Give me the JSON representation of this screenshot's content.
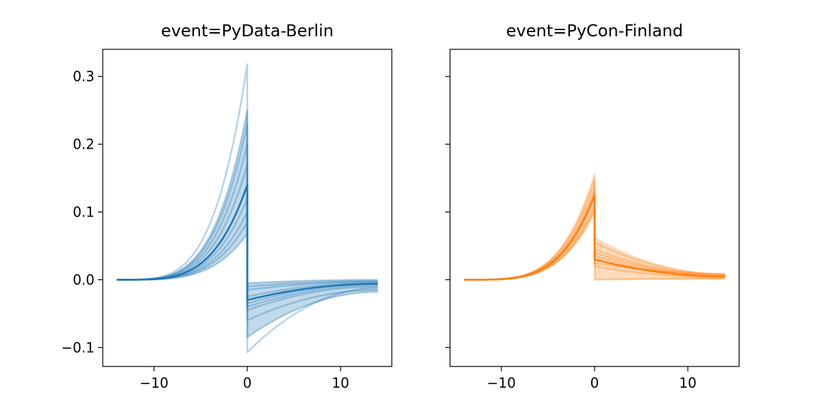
{
  "chart_data": [
    {
      "type": "line",
      "title": "event=PyData-Berlin",
      "color": "#1f77b4",
      "xlim": [
        -15.5,
        15.5
      ],
      "ylim": [
        -0.128,
        0.34
      ],
      "xticks": [
        {
          "value": -10,
          "label": "−10"
        },
        {
          "value": 0,
          "label": "0"
        },
        {
          "value": 10,
          "label": "10"
        }
      ],
      "yticks": [
        {
          "value": -0.1,
          "label": "−0.1"
        },
        {
          "value": 0.0,
          "label": "0.0"
        },
        {
          "value": 0.1,
          "label": "0.1"
        },
        {
          "value": 0.2,
          "label": "0.2"
        },
        {
          "value": 0.3,
          "label": "0.3"
        }
      ],
      "show_ytick_labels": true,
      "band": {
        "x_start": -14,
        "x_end": 14,
        "peak_low": 0.068,
        "peak_high": 0.25,
        "drop_low": -0.085,
        "drop_high": -0.005,
        "end_low": -0.018,
        "end_high": 0.0
      },
      "mean": {
        "peak": 0.14,
        "drop": -0.03,
        "end": -0.006
      },
      "series": [
        {
          "values": {
            "peak": 0.318,
            "drop": -0.107,
            "end": -0.012
          }
        },
        {
          "values": {
            "peak": 0.25,
            "drop": -0.085,
            "end": -0.018
          }
        },
        {
          "values": {
            "peak": 0.23,
            "drop": -0.06,
            "end": -0.015
          }
        },
        {
          "values": {
            "peak": 0.2,
            "drop": -0.045,
            "end": -0.01
          }
        },
        {
          "values": {
            "peak": 0.17,
            "drop": -0.04,
            "end": -0.008
          }
        },
        {
          "values": {
            "peak": 0.14,
            "drop": -0.035,
            "end": -0.006
          }
        },
        {
          "values": {
            "peak": 0.12,
            "drop": -0.025,
            "end": -0.004
          }
        },
        {
          "values": {
            "peak": 0.1,
            "drop": -0.015,
            "end": -0.003
          }
        },
        {
          "values": {
            "peak": 0.085,
            "drop": -0.01,
            "end": -0.002
          }
        },
        {
          "values": {
            "peak": 0.068,
            "drop": -0.005,
            "end": 0.0
          }
        }
      ]
    },
    {
      "type": "line",
      "title": "event=PyCon-Finland",
      "color": "#ff7f0e",
      "xlim": [
        -15.5,
        15.5
      ],
      "ylim": [
        -0.128,
        0.34
      ],
      "xticks": [
        {
          "value": -10,
          "label": "−10"
        },
        {
          "value": 0,
          "label": "0"
        },
        {
          "value": 10,
          "label": "10"
        }
      ],
      "yticks": [
        {
          "value": -0.1,
          "label": "−0.1"
        },
        {
          "value": 0.0,
          "label": "0.0"
        },
        {
          "value": 0.1,
          "label": "0.1"
        },
        {
          "value": 0.2,
          "label": "0.2"
        },
        {
          "value": 0.3,
          "label": "0.3"
        }
      ],
      "show_ytick_labels": false,
      "band": {
        "x_start": -14,
        "x_end": 14,
        "peak_low": 0.1,
        "peak_high": 0.155,
        "drop_low": 0.0,
        "drop_high": 0.063,
        "end_low": 0.0,
        "end_high": 0.009
      },
      "mean": {
        "peak": 0.125,
        "drop": 0.03,
        "end": 0.005
      },
      "series": [
        {
          "values": {
            "peak": 0.155,
            "drop": 0.0,
            "end": 0.002
          }
        },
        {
          "values": {
            "peak": 0.145,
            "drop": 0.02,
            "end": 0.003
          }
        },
        {
          "values": {
            "peak": 0.135,
            "drop": 0.03,
            "end": 0.004
          }
        },
        {
          "values": {
            "peak": 0.128,
            "drop": 0.035,
            "end": 0.005
          }
        },
        {
          "values": {
            "peak": 0.12,
            "drop": 0.04,
            "end": 0.006
          }
        },
        {
          "values": {
            "peak": 0.11,
            "drop": 0.045,
            "end": 0.007
          }
        },
        {
          "values": {
            "peak": 0.1,
            "drop": 0.055,
            "end": 0.008
          }
        },
        {
          "values": {
            "peak": 0.105,
            "drop": 0.025,
            "end": 0.009
          }
        }
      ]
    }
  ]
}
